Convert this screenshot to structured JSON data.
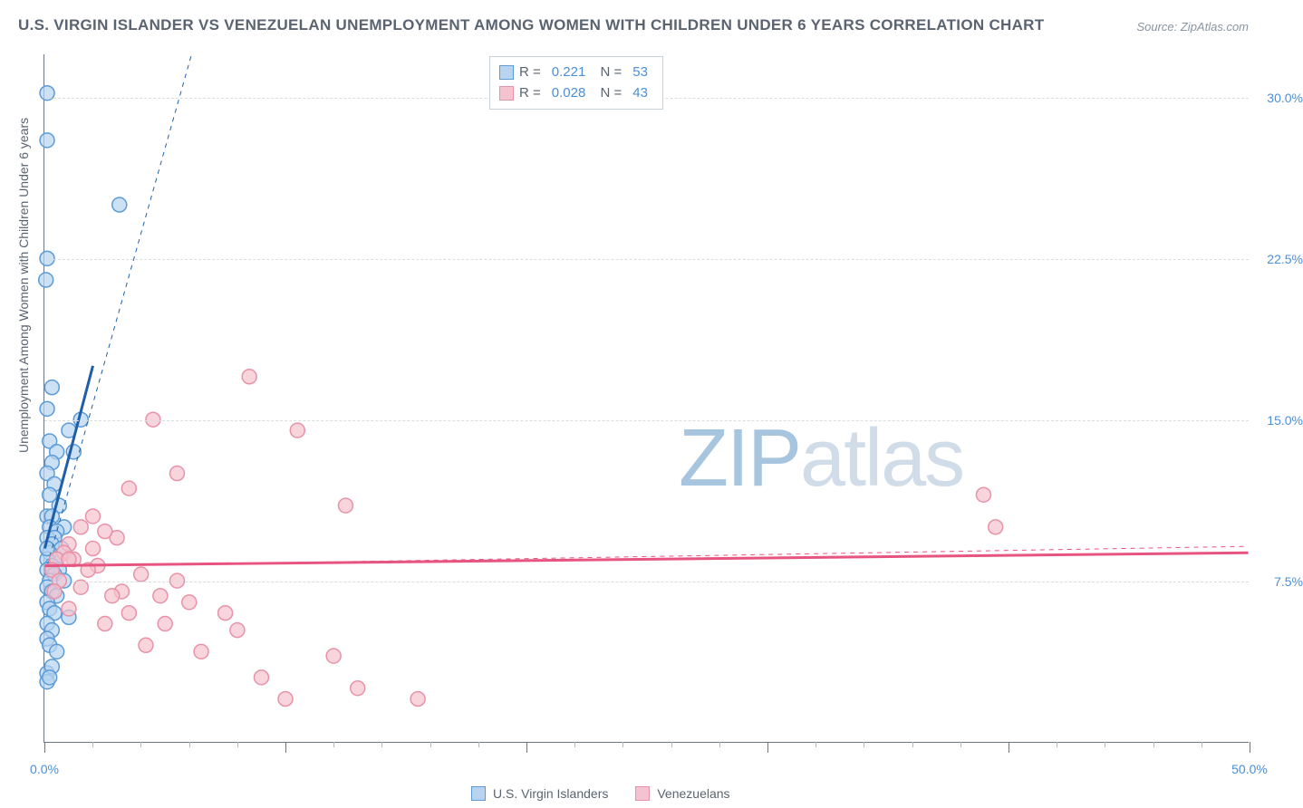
{
  "title": "U.S. VIRGIN ISLANDER VS VENEZUELAN UNEMPLOYMENT AMONG WOMEN WITH CHILDREN UNDER 6 YEARS CORRELATION CHART",
  "source": "Source: ZipAtlas.com",
  "ylabel": "Unemployment Among Women with Children Under 6 years",
  "watermark_bold": "ZIP",
  "watermark_thin": "atlas",
  "chart": {
    "type": "scatter-correlation",
    "xlim": [
      0,
      50
    ],
    "ylim": [
      0,
      32
    ],
    "yticks": [
      7.5,
      15.0,
      22.5,
      30.0
    ],
    "ytick_labels": [
      "7.5%",
      "15.0%",
      "22.5%",
      "30.0%"
    ],
    "xlim_labels": [
      "0.0%",
      "50.0%"
    ],
    "x_major_ticks": [
      0,
      10,
      20,
      30,
      40,
      50
    ],
    "x_minor_ticks": [
      2,
      4,
      6,
      8,
      12,
      14,
      16,
      18,
      22,
      24,
      26,
      28,
      32,
      34,
      36,
      38,
      42,
      44,
      46,
      48
    ],
    "background_color": "#ffffff",
    "grid_color": "#d8dde2",
    "axis_color": "#6b7682",
    "marker_radius": 8,
    "marker_stroke_width": 1.5,
    "trend_solid_width": 3,
    "trend_dash_width": 1,
    "series": [
      {
        "name": "U.S. Virgin Islanders",
        "color_fill": "#b8d4f0",
        "color_stroke": "#5a9bd8",
        "color_trend": "#1e5fa8",
        "R": 0.221,
        "N": 53,
        "points": [
          [
            0.1,
            30.2
          ],
          [
            0.1,
            28.0
          ],
          [
            3.1,
            25.0
          ],
          [
            0.1,
            22.5
          ],
          [
            0.05,
            21.5
          ],
          [
            0.3,
            16.5
          ],
          [
            0.1,
            15.5
          ],
          [
            1.5,
            15.0
          ],
          [
            1.0,
            14.5
          ],
          [
            0.2,
            14.0
          ],
          [
            0.5,
            13.5
          ],
          [
            1.2,
            13.5
          ],
          [
            0.3,
            13.0
          ],
          [
            0.1,
            12.5
          ],
          [
            0.4,
            12.0
          ],
          [
            0.2,
            11.5
          ],
          [
            0.6,
            11.0
          ],
          [
            0.1,
            10.5
          ],
          [
            0.3,
            10.5
          ],
          [
            0.8,
            10.0
          ],
          [
            0.2,
            10.0
          ],
          [
            0.5,
            9.8
          ],
          [
            0.1,
            9.5
          ],
          [
            0.4,
            9.5
          ],
          [
            0.3,
            9.2
          ],
          [
            0.7,
            9.0
          ],
          [
            0.1,
            9.0
          ],
          [
            0.2,
            8.8
          ],
          [
            0.5,
            8.5
          ],
          [
            0.1,
            8.5
          ],
          [
            0.3,
            8.2
          ],
          [
            0.6,
            8.0
          ],
          [
            0.1,
            8.0
          ],
          [
            0.4,
            7.8
          ],
          [
            0.2,
            7.5
          ],
          [
            0.8,
            7.5
          ],
          [
            0.1,
            7.2
          ],
          [
            0.3,
            7.0
          ],
          [
            0.5,
            6.8
          ],
          [
            0.1,
            6.5
          ],
          [
            0.2,
            6.2
          ],
          [
            0.4,
            6.0
          ],
          [
            0.1,
            5.5
          ],
          [
            1.0,
            5.8
          ],
          [
            0.3,
            5.2
          ],
          [
            0.1,
            4.8
          ],
          [
            0.2,
            4.5
          ],
          [
            0.5,
            4.2
          ],
          [
            0.1,
            3.2
          ],
          [
            0.3,
            3.5
          ],
          [
            0.1,
            2.8
          ],
          [
            0.2,
            3.0
          ],
          [
            0.1,
            9.0
          ]
        ],
        "trend_solid": [
          [
            0.0,
            9.0
          ],
          [
            2.0,
            17.5
          ]
        ],
        "trend_dash": [
          [
            0.0,
            7.8
          ],
          [
            6.1,
            32.0
          ]
        ]
      },
      {
        "name": "Venezuelans",
        "color_fill": "#f5c2cf",
        "color_stroke": "#e892a8",
        "color_trend": "#e75480",
        "R": 0.028,
        "N": 43,
        "points": [
          [
            8.5,
            17.0
          ],
          [
            10.5,
            14.5
          ],
          [
            4.5,
            15.0
          ],
          [
            5.5,
            12.5
          ],
          [
            3.5,
            11.8
          ],
          [
            12.5,
            11.0
          ],
          [
            2.0,
            10.5
          ],
          [
            1.5,
            10.0
          ],
          [
            3.0,
            9.5
          ],
          [
            2.5,
            9.8
          ],
          [
            1.0,
            9.2
          ],
          [
            0.8,
            8.8
          ],
          [
            0.5,
            8.5
          ],
          [
            1.2,
            8.5
          ],
          [
            2.2,
            8.2
          ],
          [
            0.3,
            8.0
          ],
          [
            1.8,
            8.0
          ],
          [
            4.0,
            7.8
          ],
          [
            0.6,
            7.5
          ],
          [
            5.5,
            7.5
          ],
          [
            1.5,
            7.2
          ],
          [
            3.2,
            7.0
          ],
          [
            0.4,
            7.0
          ],
          [
            2.8,
            6.8
          ],
          [
            4.8,
            6.8
          ],
          [
            6.0,
            6.5
          ],
          [
            1.0,
            6.2
          ],
          [
            3.5,
            6.0
          ],
          [
            7.5,
            6.0
          ],
          [
            2.5,
            5.5
          ],
          [
            5.0,
            5.5
          ],
          [
            8.0,
            5.2
          ],
          [
            4.2,
            4.5
          ],
          [
            6.5,
            4.2
          ],
          [
            12.0,
            4.0
          ],
          [
            9.0,
            3.0
          ],
          [
            10.0,
            2.0
          ],
          [
            13.0,
            2.5
          ],
          [
            15.5,
            2.0
          ],
          [
            39.0,
            11.5
          ],
          [
            39.5,
            10.0
          ],
          [
            1.0,
            8.5
          ],
          [
            2.0,
            9.0
          ]
        ],
        "trend_solid": [
          [
            0.0,
            8.2
          ],
          [
            50.0,
            8.8
          ]
        ],
        "trend_dash": [
          [
            0.0,
            8.15
          ],
          [
            50.0,
            9.1
          ]
        ]
      }
    ]
  },
  "legend_corr": [
    {
      "sw": "blue",
      "R": "0.221",
      "N": "53"
    },
    {
      "sw": "pink",
      "R": "0.028",
      "N": "43"
    }
  ],
  "legend_bottom": [
    {
      "sw": "blue",
      "label": "U.S. Virgin Islanders"
    },
    {
      "sw": "pink",
      "label": "Venezuelans"
    }
  ]
}
